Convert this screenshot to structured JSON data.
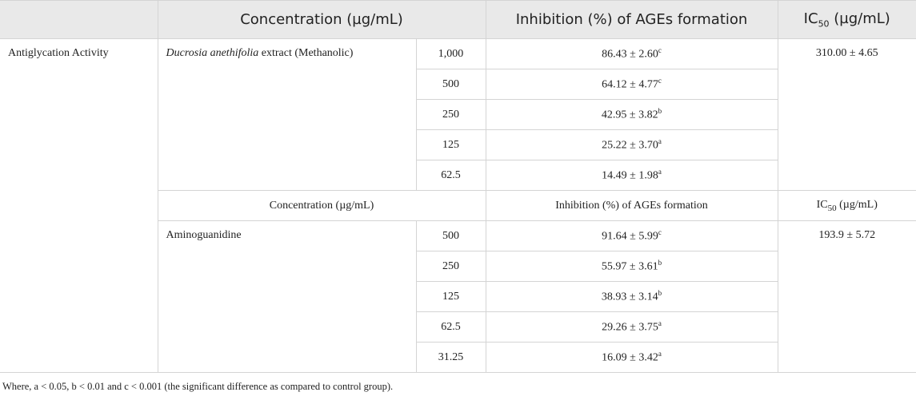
{
  "header": {
    "concentration": "Concentration (µg/mL)",
    "inhibition": "Inhibition (%) of AGEs formation",
    "ic50": {
      "base": "IC",
      "sub": "50",
      "unit": " (µg/mL)"
    }
  },
  "table": {
    "activity": "Antiglycation Activity",
    "groups": [
      {
        "sample": {
          "italic": "Ducrosia anethifolia",
          "rest": " extract (Methanolic)"
        },
        "ic50": "310.00 ± 4.65",
        "rows": [
          [
            "1,000",
            "86.43 ± 2.60",
            "c"
          ],
          [
            "500",
            "64.12 ± 4.77",
            "c"
          ],
          [
            "250",
            "42.95 ± 3.82",
            "b"
          ],
          [
            "125",
            "25.22 ± 3.70",
            "a"
          ],
          [
            "62.5",
            "14.49 ± 1.98",
            "a"
          ]
        ]
      },
      {
        "header": {
          "concentration": "Concentration (µg/mL)",
          "inhibition": "Inhibition (%) of AGEs formation",
          "ic50": {
            "base": "IC",
            "sub": "50",
            "unit": " (µg/mL)"
          }
        },
        "sample": {
          "rest": "Aminoguanidine"
        },
        "ic50": "193.9 ± 5.72",
        "rows": [
          [
            "500",
            "91.64 ± 5.99",
            "c"
          ],
          [
            "250",
            "55.97 ± 3.61",
            "b"
          ],
          [
            "125",
            "38.93 ± 3.14",
            "b"
          ],
          [
            "62.5",
            "29.26 ± 3.75",
            "a"
          ],
          [
            "31.25",
            "16.09 ± 3.42",
            "a"
          ]
        ]
      }
    ]
  },
  "footnote": "Where, a < 0.05, b < 0.01 and c < 0.001 (the significant difference as compared to control group)."
}
